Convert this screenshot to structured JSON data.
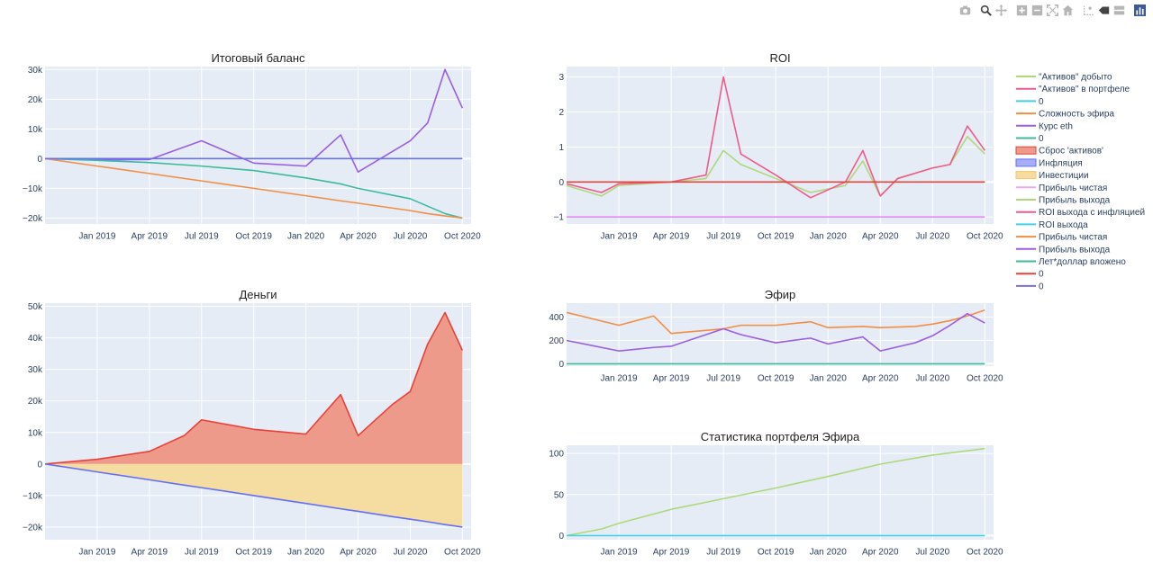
{
  "modebar": {
    "buttons": [
      {
        "name": "camera-icon"
      },
      {
        "name": "zoom-icon",
        "active": true
      },
      {
        "name": "pan-icon"
      },
      {
        "name": "zoom-in-icon"
      },
      {
        "name": "zoom-out-icon"
      },
      {
        "name": "autoscale-icon"
      },
      {
        "name": "reset-axes-icon"
      },
      {
        "name": "spike-lines-icon"
      },
      {
        "name": "hover-closest-icon"
      },
      {
        "name": "hover-compare-icon"
      },
      {
        "name": "plotly-logo-icon"
      }
    ]
  },
  "colors": {
    "plot_bg": "#e5ecf6",
    "grid": "#ffffff",
    "text": "#2a3f5f",
    "green": "#3dba9e",
    "orange": "#f28e43",
    "purple": "#9b5de5",
    "blue": "#636efa",
    "red_line": "#e8413a",
    "red_fill": "#ee9a8a",
    "yellow_fill": "#f5dca0",
    "pink": "#ee5b8a",
    "lightgreen": "#aed97a",
    "cyan": "#3fd1e0",
    "violet": "#e28cf5"
  },
  "x_ticks": [
    "Jan 2019",
    "Apr 2019",
    "Jul 2019",
    "Oct 2019",
    "Jan 2020",
    "Apr 2020",
    "Jul 2020",
    "Oct 2020"
  ],
  "legend": [
    {
      "label": "\"Активов\" добыто",
      "color": "#aed97a",
      "kind": "line"
    },
    {
      "label": "\"Активов\" в портфеле",
      "color": "#ee5b8a",
      "kind": "line"
    },
    {
      "label": "0",
      "color": "#3fd1e0",
      "kind": "line"
    },
    {
      "label": "Сложность эфира",
      "color": "#f28e43",
      "kind": "line"
    },
    {
      "label": "Курс eth",
      "color": "#9b5de5",
      "kind": "line"
    },
    {
      "label": "0",
      "color": "#3dba9e",
      "kind": "line"
    },
    {
      "label": "Сброс 'активов'",
      "color": "#e8413a",
      "kind": "fill",
      "fill": "#ee9a8a"
    },
    {
      "label": "Инфляция",
      "color": "#636efa",
      "kind": "fill",
      "fill": "#a7aef7"
    },
    {
      "label": "Инвестиции",
      "color": "#f5c76a",
      "kind": "fill",
      "fill": "#f5dca0"
    },
    {
      "label": "Прибыль чистая",
      "color": "#f0a8e8",
      "kind": "line"
    },
    {
      "label": "Прибыль выхода",
      "color": "#aed97a",
      "kind": "line"
    },
    {
      "label": "ROI выхода с инфляцией",
      "color": "#ee5b8a",
      "kind": "line"
    },
    {
      "label": "ROI выхода",
      "color": "#3fd1e0",
      "kind": "line"
    },
    {
      "label": "Прибыль чистая",
      "color": "#f28e43",
      "kind": "line"
    },
    {
      "label": "Прибыль выхода",
      "color": "#9b5de5",
      "kind": "line"
    },
    {
      "label": "Лет*доллар вложено",
      "color": "#3dba9e",
      "kind": "line"
    },
    {
      "label": "0",
      "color": "#e8413a",
      "kind": "line"
    },
    {
      "label": "0",
      "color": "#7b6fd9",
      "kind": "line"
    }
  ],
  "chart_data": [
    {
      "type": "line",
      "title": "Итоговый баланс",
      "x": [
        "2018-10",
        "2019-01",
        "2019-04",
        "2019-07",
        "2019-10",
        "2020-01",
        "2020-03",
        "2020-04",
        "2020-07",
        "2020-08",
        "2020-09",
        "2020-10"
      ],
      "ylim": [
        -22000,
        31000
      ],
      "yticks": [
        30000,
        20000,
        10000,
        0,
        -10000,
        -20000
      ],
      "ytick_labels": [
        "30k",
        "20k",
        "10k",
        "0",
        "−10k",
        "−20k"
      ],
      "series": [
        {
          "color": "purple",
          "values": [
            0,
            -400,
            -300,
            6000,
            -1500,
            -2500,
            8000,
            -4500,
            6000,
            12000,
            30000,
            17000
          ]
        },
        {
          "color": "green",
          "values": [
            0,
            -600,
            -1300,
            -2500,
            -4000,
            -6500,
            -8500,
            -10000,
            -13500,
            -16000,
            -18500,
            -20000
          ]
        },
        {
          "color": "orange",
          "values": [
            0,
            -2500,
            -5000,
            -7500,
            -10000,
            -12500,
            -14200,
            -15000,
            -17500,
            -18500,
            -19300,
            -20000
          ]
        },
        {
          "color": "blue",
          "values": [
            0,
            0,
            0,
            0,
            0,
            0,
            0,
            0,
            0,
            0,
            0,
            0
          ]
        }
      ]
    },
    {
      "type": "line",
      "title": "ROI",
      "x": [
        "2018-10",
        "2018-12",
        "2019-01",
        "2019-04",
        "2019-06",
        "2019-07",
        "2019-08",
        "2019-10",
        "2019-12",
        "2020-02",
        "2020-03",
        "2020-04",
        "2020-05",
        "2020-07",
        "2020-08",
        "2020-09",
        "2020-10"
      ],
      "ylim": [
        -1.2,
        3.3
      ],
      "yticks": [
        3,
        2,
        1,
        0,
        -1
      ],
      "ytick_labels": [
        "3",
        "2",
        "1",
        "0",
        "−1"
      ],
      "series": [
        {
          "color": "lightgreen",
          "values": [
            -0.1,
            -0.4,
            -0.1,
            0,
            0.1,
            0.9,
            0.5,
            0.1,
            -0.3,
            -0.1,
            0.6,
            -0.4,
            0.1,
            0.4,
            0.5,
            1.3,
            0.8
          ]
        },
        {
          "color": "pink",
          "values": [
            -0.05,
            -0.3,
            -0.05,
            0,
            0.2,
            3.0,
            0.8,
            0.2,
            -0.45,
            0,
            0.9,
            -0.4,
            0.1,
            0.4,
            0.5,
            1.6,
            0.9
          ]
        },
        {
          "color": "red_line",
          "values": [
            0,
            0,
            0,
            0,
            0,
            0,
            0,
            0,
            0,
            0,
            0,
            0,
            0,
            0,
            0,
            0,
            0
          ]
        },
        {
          "color": "violet",
          "values": [
            -1,
            -1,
            -1,
            -1,
            -1,
            -1,
            -1,
            -1,
            -1,
            -1,
            -1,
            -1,
            -1,
            -1,
            -1,
            -1,
            -1
          ]
        }
      ]
    },
    {
      "type": "area",
      "title": "Деньги",
      "x": [
        "2018-10",
        "2019-01",
        "2019-04",
        "2019-06",
        "2019-07",
        "2019-10",
        "2020-01",
        "2020-03",
        "2020-04",
        "2020-06",
        "2020-07",
        "2020-08",
        "2020-09",
        "2020-10"
      ],
      "ylim": [
        -24000,
        51000
      ],
      "yticks": [
        50000,
        40000,
        30000,
        20000,
        10000,
        0,
        -10000,
        -20000
      ],
      "ytick_labels": [
        "50k",
        "40k",
        "30k",
        "20k",
        "10k",
        "0",
        "−10k",
        "−20k"
      ],
      "series": [
        {
          "color": "red_line",
          "fill": "red_fill",
          "values": [
            0,
            1500,
            4000,
            9000,
            14000,
            11000,
            9500,
            22000,
            9000,
            19000,
            23000,
            38000,
            48000,
            36000
          ]
        },
        {
          "color": "blue",
          "fill": "yellow_fill",
          "values": [
            0,
            -2500,
            -5000,
            -6700,
            -7500,
            -10000,
            -12500,
            -14200,
            -15000,
            -16700,
            -17500,
            -18300,
            -19200,
            -20000
          ]
        }
      ]
    },
    {
      "type": "line",
      "title": "Эфир",
      "x": [
        "2018-10",
        "2019-01",
        "2019-03",
        "2019-04",
        "2019-07",
        "2019-08",
        "2019-10",
        "2019-12",
        "2020-01",
        "2020-03",
        "2020-04",
        "2020-06",
        "2020-07",
        "2020-08",
        "2020-09",
        "2020-10"
      ],
      "ylim": [
        -20,
        520
      ],
      "yticks": [
        400,
        200,
        0
      ],
      "ytick_labels": [
        "400",
        "200",
        "0"
      ],
      "series": [
        {
          "color": "orange",
          "values": [
            440,
            330,
            410,
            260,
            300,
            330,
            330,
            360,
            310,
            320,
            310,
            320,
            340,
            370,
            410,
            460
          ]
        },
        {
          "color": "purple",
          "values": [
            200,
            110,
            140,
            150,
            300,
            250,
            180,
            220,
            170,
            230,
            110,
            180,
            240,
            330,
            430,
            350
          ]
        },
        {
          "color": "green",
          "values": [
            0,
            0,
            0,
            0,
            0,
            0,
            0,
            0,
            0,
            0,
            0,
            0,
            0,
            0,
            0,
            0
          ]
        }
      ]
    },
    {
      "type": "line",
      "title": "Статистика портфеля Эфира",
      "x": [
        "2018-10",
        "2018-12",
        "2019-01",
        "2019-04",
        "2019-07",
        "2019-10",
        "2020-01",
        "2020-04",
        "2020-07",
        "2020-10"
      ],
      "ylim": [
        -5,
        110
      ],
      "yticks": [
        100,
        50,
        0
      ],
      "ytick_labels": [
        "100",
        "50",
        "0"
      ],
      "series": [
        {
          "color": "lightgreen",
          "values": [
            0,
            8,
            15,
            32,
            45,
            58,
            72,
            87,
            98,
            106
          ]
        },
        {
          "color": "cyan",
          "values": [
            0,
            0,
            0,
            0,
            0,
            0,
            0,
            0,
            0,
            0
          ]
        }
      ]
    }
  ]
}
